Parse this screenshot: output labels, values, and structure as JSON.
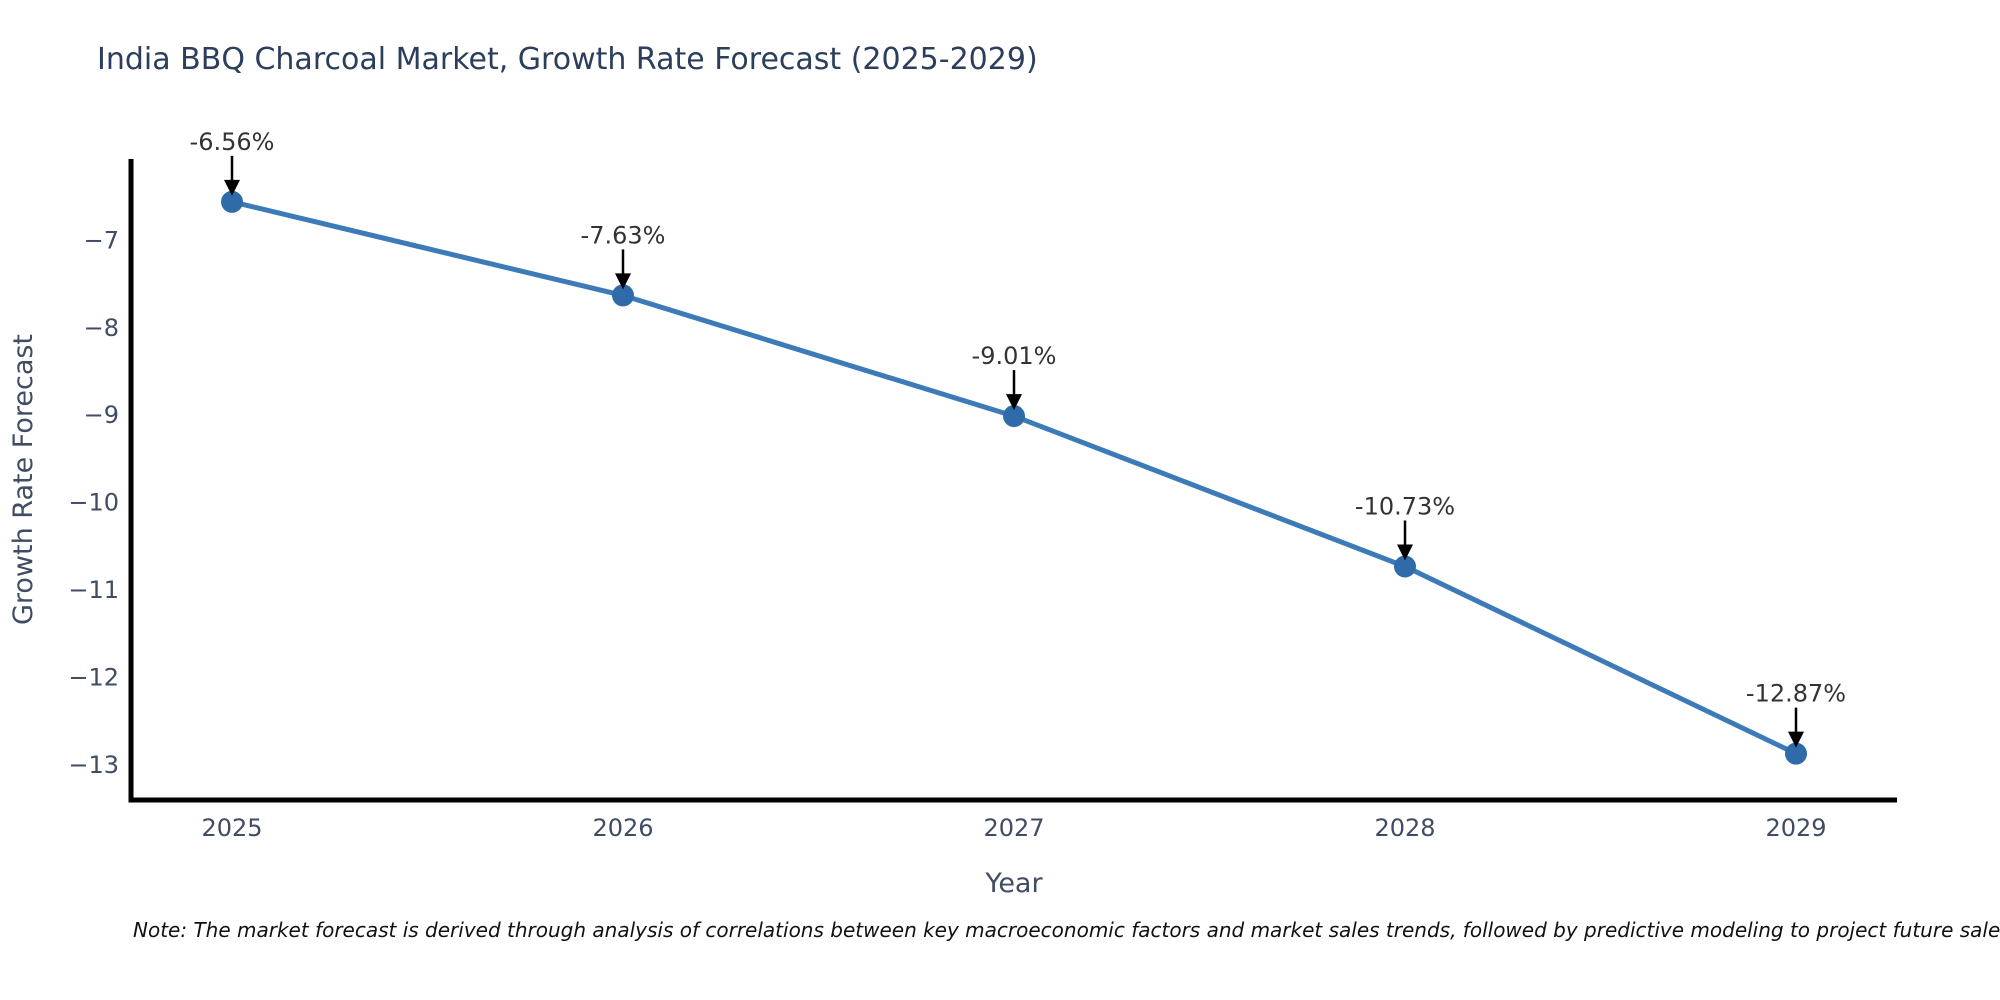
{
  "chart_data": {
    "type": "line",
    "title": "India BBQ Charcoal Market, Growth Rate Forecast (2025-2029)",
    "xlabel": "Year",
    "ylabel": "Growth Rate Forecast",
    "categories": [
      "2025",
      "2026",
      "2027",
      "2028",
      "2029"
    ],
    "values": [
      -6.56,
      -7.63,
      -9.01,
      -10.73,
      -12.87
    ],
    "point_labels": [
      "-6.56%",
      "-7.63%",
      "-9.01%",
      "-10.73%",
      "-12.87%"
    ],
    "yticks": [
      -7,
      -8,
      -9,
      -10,
      -11,
      -12,
      -13
    ],
    "ylim": [
      -13.4,
      -6.07
    ],
    "grid": false,
    "legend": "none",
    "background": "#ffffff",
    "line_color": "#3d7ab8",
    "marker_color": "#2e6ba8",
    "axis_color": "#000000",
    "tick_color": "#3f4c63",
    "title_color": "#2b3e5c",
    "annotation_color": "#333333"
  },
  "footnote": {
    "text": "Note: The market forecast is derived through analysis of correlations between key macroeconomic factors and market sales trends, followed by predictive modeling to project future sales"
  }
}
